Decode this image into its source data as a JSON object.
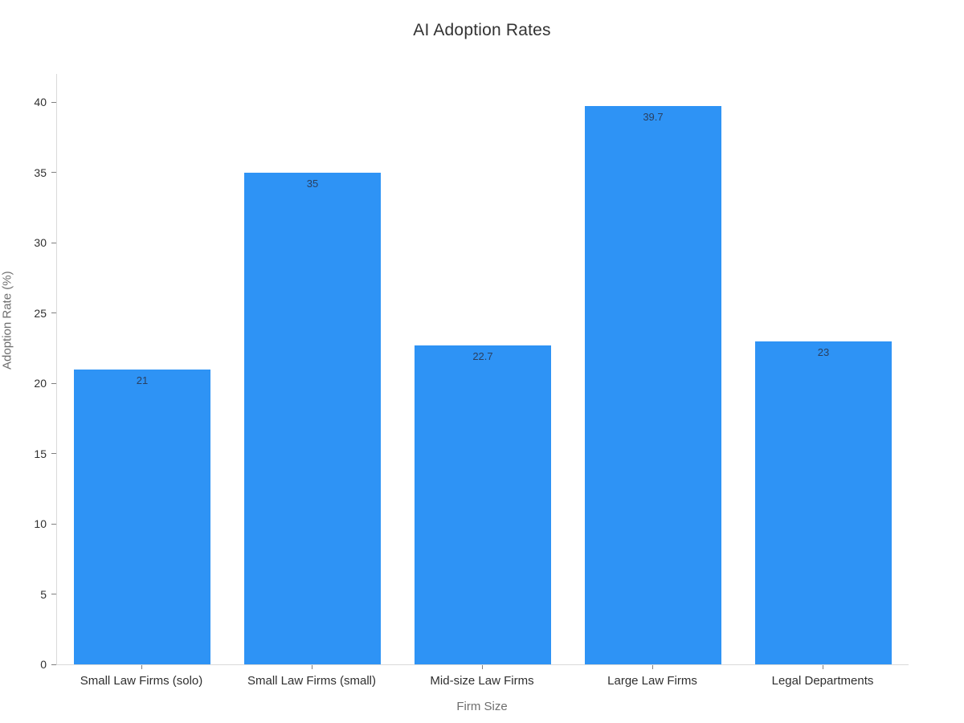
{
  "page": {
    "background": "#ffffff"
  },
  "chart_data": {
    "type": "bar",
    "title": "AI Adoption Rates",
    "xlabel": "Firm Size",
    "ylabel": "Adoption Rate (%)",
    "categories": [
      "Small Law Firms (solo)",
      "Small Law Firms (small)",
      "Mid-size Law Firms",
      "Large Law Firms",
      "Legal Departments"
    ],
    "values": [
      21,
      35,
      22.7,
      39.7,
      23
    ],
    "value_labels": [
      "21",
      "35",
      "22.7",
      "39.7",
      "23"
    ],
    "yticks": [
      0,
      5,
      10,
      15,
      20,
      25,
      30,
      35,
      40
    ],
    "ylim": [
      0,
      42
    ],
    "grid": false,
    "legend": "none",
    "bar_gap_fraction": 0.2,
    "colors": {
      "bar": "#2E93F5",
      "value_label": "#2a3f5f",
      "tick_label": "#2f2f2f",
      "axis_title": "#6e6e6e",
      "axis_line": "#d9d9d9",
      "tick_mark": "#7f7f7f",
      "title": "#333333",
      "background": "#ffffff"
    }
  }
}
